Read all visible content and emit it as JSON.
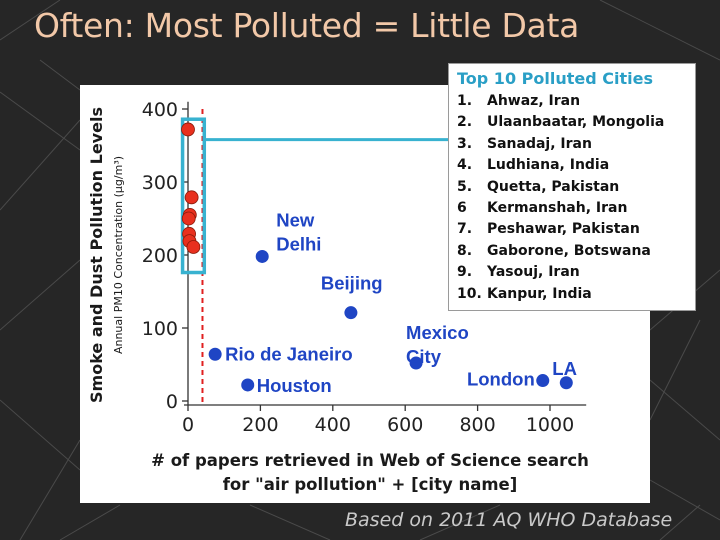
{
  "slide": {
    "title": "Often: Most Polluted = Little Data",
    "source_note": "Based on 2011 AQ WHO Database"
  },
  "top10": {
    "title": "Top 10 Polluted Cities",
    "cities": [
      {
        "num": "1.",
        "name": "Ahwaz, Iran"
      },
      {
        "num": "2.",
        "name": "Ulaanbaatar, Mongolia"
      },
      {
        "num": "3.",
        "name": "Sanadaj, Iran"
      },
      {
        "num": "4.",
        "name": "Ludhiana, India"
      },
      {
        "num": "5.",
        "name": "Quetta, Pakistan"
      },
      {
        "num": "6",
        "name": "Kermanshah, Iran"
      },
      {
        "num": "7.",
        "name": "Peshawar, Pakistan"
      },
      {
        "num": "8.",
        "name": "Gaborone, Botswana"
      },
      {
        "num": "9.",
        "name": "Yasouj, Iran"
      },
      {
        "num": "10.",
        "name": "Kanpur, India"
      }
    ]
  },
  "colors": {
    "background": "#262626",
    "title": "#f2c8a8",
    "blue_points": "#1f45c4",
    "red_points": "#e8301e",
    "highlight": "#38b2d0",
    "dashed_line": "#e02020",
    "top10_title": "#2a9fc6"
  },
  "chart_data": {
    "type": "scatter",
    "xlabel": "# of papers retrieved in Web of Science search\nfor \"air pollution\" + [city name]",
    "ylabel": "Smoke and Dust Pollution Levels",
    "ylabel_sub": "Annual PM10 Concentration (µg/m³)",
    "xlim": [
      0,
      1100
    ],
    "ylim": [
      0,
      400
    ],
    "xticks": [
      0,
      200,
      400,
      600,
      800,
      1000
    ],
    "yticks": [
      0,
      100,
      200,
      300,
      400
    ],
    "grid": false,
    "threshold_x": 40,
    "labeled_cities": [
      {
        "label": "New\nDelhi",
        "x": 205,
        "y": 198
      },
      {
        "label": "Beijing",
        "x": 450,
        "y": 121
      },
      {
        "label": "Rio de Janeiro",
        "x": 75,
        "y": 64
      },
      {
        "label": "Houston",
        "x": 165,
        "y": 22
      },
      {
        "label": "Mexico\nCity",
        "x": 630,
        "y": 52
      },
      {
        "label": "London",
        "x": 980,
        "y": 28
      },
      {
        "label": "LA",
        "x": 1045,
        "y": 25
      }
    ],
    "top10_points": [
      {
        "x": 0,
        "y": 372
      },
      {
        "x": 10,
        "y": 279
      },
      {
        "x": 5,
        "y": 255
      },
      {
        "x": 2,
        "y": 250
      },
      {
        "x": 3,
        "y": 229
      },
      {
        "x": 4,
        "y": 219
      },
      {
        "x": 15,
        "y": 211
      }
    ],
    "highlight_box": {
      "x0": -15,
      "x1": 45,
      "y0": 176,
      "y1": 386
    }
  }
}
